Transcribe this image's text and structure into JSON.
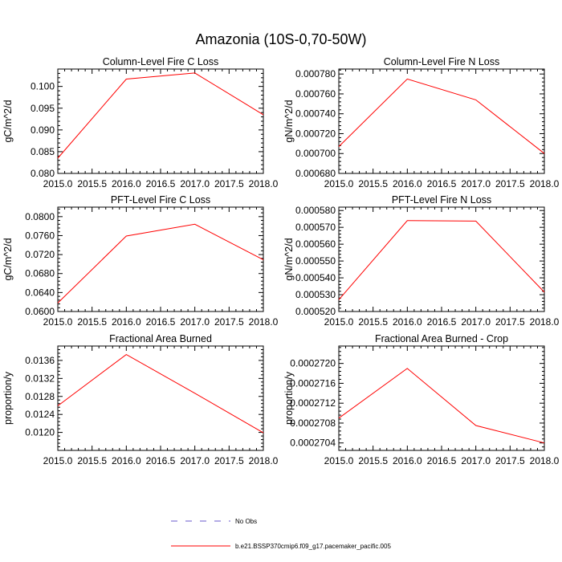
{
  "title": "Amazonia (10S-0,70-50W)",
  "colors": {
    "model": "#ff0000",
    "obs": "#6a5acd",
    "axes": "#000000"
  },
  "legend": [
    {
      "label": "No Obs",
      "style": "dashed",
      "color": "#6a5acd"
    },
    {
      "label": "b.e21.BSSP370cmip6.f09_g17.pacemaker_pacific.005",
      "style": "solid",
      "color": "#ff0000"
    }
  ],
  "chart_data": [
    {
      "type": "line",
      "title": "Column-Level Fire C Loss",
      "ylabel": "gC/m^2/d",
      "xlim": [
        2015,
        2018
      ],
      "ylim": [
        0.08,
        0.104
      ],
      "xticks": [
        "2015.0",
        "2015.5",
        "2016.0",
        "2016.5",
        "2017.0",
        "2017.5",
        "2018.0"
      ],
      "yticks": [
        "0.080",
        "0.085",
        "0.090",
        "0.095",
        "0.100"
      ],
      "x": [
        2015,
        2016,
        2017,
        2018
      ],
      "y": [
        0.0835,
        0.1017,
        0.1031,
        0.0935
      ]
    },
    {
      "type": "line",
      "title": "Column-Level Fire N Loss",
      "ylabel": "gN/m^2/d",
      "xlim": [
        2015,
        2018
      ],
      "ylim": [
        0.00068,
        0.000785
      ],
      "xticks": [
        "2015.0",
        "2015.5",
        "2016.0",
        "2016.5",
        "2017.0",
        "2017.5",
        "2018.0"
      ],
      "yticks": [
        "0.000680",
        "0.000700",
        "0.000720",
        "0.000740",
        "0.000760",
        "0.000780"
      ],
      "x": [
        2015,
        2016,
        2017,
        2018
      ],
      "y": [
        0.000707,
        0.000775,
        0.000754,
        0.0007
      ]
    },
    {
      "type": "line",
      "title": "PFT-Level Fire C Loss",
      "ylabel": "gC/m^2/d",
      "xlim": [
        2015,
        2018
      ],
      "ylim": [
        0.06,
        0.082
      ],
      "xticks": [
        "2015.0",
        "2015.5",
        "2016.0",
        "2016.5",
        "2017.0",
        "2017.5",
        "2018.0"
      ],
      "yticks": [
        "0.0600",
        "0.0640",
        "0.0680",
        "0.0720",
        "0.0760",
        "0.0800"
      ],
      "x": [
        2015,
        2016,
        2017,
        2018
      ],
      "y": [
        0.0618,
        0.0759,
        0.0784,
        0.0709
      ]
    },
    {
      "type": "line",
      "title": "PFT-Level Fire N Loss",
      "ylabel": "gN/m^2/d",
      "xlim": [
        2015,
        2018
      ],
      "ylim": [
        0.00052,
        0.000582
      ],
      "xticks": [
        "2015.0",
        "2015.5",
        "2016.0",
        "2016.5",
        "2017.0",
        "2017.5",
        "2018.0"
      ],
      "yticks": [
        "0.000520",
        "0.000530",
        "0.000540",
        "0.000550",
        "0.000560",
        "0.000570",
        "0.000580"
      ],
      "x": [
        2015,
        2016,
        2017,
        2018
      ],
      "y": [
        0.000527,
        0.000574,
        0.0005737,
        0.0005315
      ]
    },
    {
      "type": "line",
      "title": "Fractional Area Burned",
      "ylabel": "proportion/y",
      "xlim": [
        2015,
        2018
      ],
      "ylim": [
        0.0116,
        0.01392
      ],
      "xticks": [
        "2015.0",
        "2015.5",
        "2016.0",
        "2016.5",
        "2017.0",
        "2017.5",
        "2018.0"
      ],
      "yticks": [
        "0.0120",
        "0.0124",
        "0.0128",
        "0.0132",
        "0.0136"
      ],
      "x": [
        2015,
        2016,
        2017,
        2018
      ],
      "y": [
        0.01259,
        0.01373,
        0.01287,
        0.01199
      ]
    },
    {
      "type": "line",
      "title": "Fractional Area Burned - Crop",
      "ylabel": "proportion/y",
      "xlim": [
        2015,
        2018
      ],
      "ylim": [
        0.00027025,
        0.00027235
      ],
      "xticks": [
        "2015.0",
        "2015.5",
        "2016.0",
        "2016.5",
        "2017.0",
        "2017.5",
        "2018.0"
      ],
      "yticks": [
        "0.0002704",
        "0.0002708",
        "0.0002712",
        "0.0002716",
        "0.0002720"
      ],
      "x": [
        2015,
        2016,
        2017,
        2018
      ],
      "y": [
        0.0002709,
        0.0002719,
        0.00027075,
        0.0002704
      ]
    }
  ]
}
